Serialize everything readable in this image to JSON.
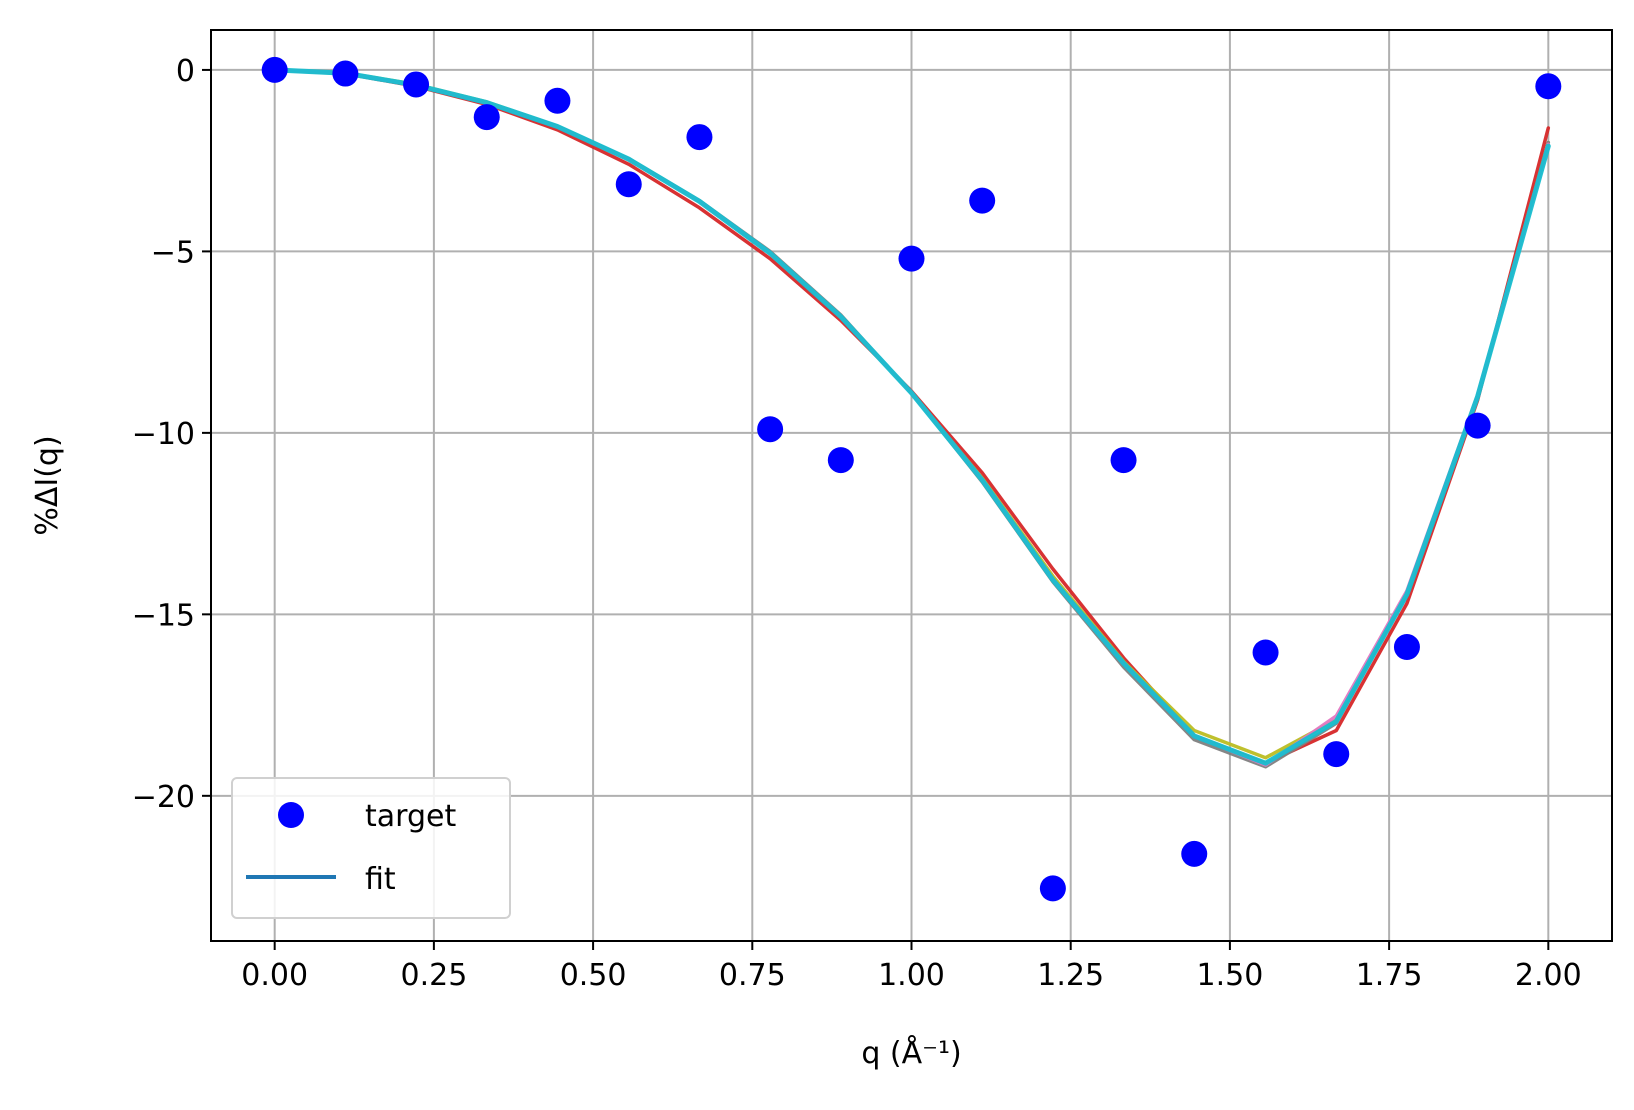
{
  "chart_data": {
    "type": "scatter",
    "title": "",
    "xlabel": "q (Å⁻¹)",
    "ylabel": "%ΔI(q)",
    "xlim": [
      -0.1,
      2.1
    ],
    "ylim": [
      -24,
      1.1
    ],
    "grid": true,
    "legend_position": "lower-left",
    "x_ticks": [
      0.0,
      0.25,
      0.5,
      0.75,
      1.0,
      1.25,
      1.5,
      1.75,
      2.0
    ],
    "x_tick_labels": [
      "0.00",
      "0.25",
      "0.50",
      "0.75",
      "1.00",
      "1.25",
      "1.50",
      "1.75",
      "2.00"
    ],
    "y_ticks": [
      0,
      -5,
      -10,
      -15,
      -20
    ],
    "y_tick_labels": [
      "0",
      "−5",
      "−10",
      "−15",
      "−20"
    ],
    "legend": [
      {
        "label": "target",
        "marker": "circle",
        "color": "#0000ff"
      },
      {
        "label": "fit",
        "marker": "line",
        "color": "#1f77b4"
      }
    ],
    "target": {
      "name": "target",
      "color": "#0000ff",
      "x": [
        0.0,
        0.111,
        0.222,
        0.333,
        0.444,
        0.556,
        0.667,
        0.778,
        0.889,
        1.0,
        1.111,
        1.222,
        1.333,
        1.444,
        1.556,
        1.667,
        1.778,
        1.889,
        2.0
      ],
      "y": [
        0.0,
        -0.1,
        -0.4,
        -1.3,
        -0.85,
        -3.15,
        -1.85,
        -9.9,
        -10.75,
        -5.2,
        -3.6,
        -22.55,
        -10.75,
        -21.6,
        -16.05,
        -18.85,
        -15.9,
        -9.8,
        -0.45
      ]
    },
    "fit_x": [
      0.0,
      0.111,
      0.222,
      0.333,
      0.444,
      0.556,
      0.667,
      0.778,
      0.889,
      1.0,
      1.111,
      1.222,
      1.333,
      1.444,
      1.556,
      1.667,
      1.778,
      1.889,
      2.0
    ],
    "fits": [
      {
        "color": "#d62728",
        "y": [
          0.0,
          -0.1,
          -0.45,
          -0.95,
          -1.65,
          -2.6,
          -3.8,
          -5.2,
          -6.9,
          -8.85,
          -11.1,
          -13.75,
          -16.2,
          -18.35,
          -19.1,
          -18.2,
          -14.7,
          -9.1,
          -1.6
        ]
      },
      {
        "color": "#bcbd22",
        "y": [
          0.0,
          -0.08,
          -0.4,
          -0.88,
          -1.55,
          -2.45,
          -3.6,
          -5.05,
          -6.8,
          -8.9,
          -11.25,
          -13.95,
          -16.3,
          -18.2,
          -18.95,
          -17.9,
          -14.4,
          -9.0,
          -2.0
        ]
      },
      {
        "color": "#7f7f7f",
        "y": [
          0.0,
          -0.09,
          -0.42,
          -0.9,
          -1.55,
          -2.45,
          -3.6,
          -5.0,
          -6.75,
          -8.9,
          -11.35,
          -14.1,
          -16.45,
          -18.45,
          -19.2,
          -18.0,
          -14.45,
          -9.0,
          -2.0
        ]
      },
      {
        "color": "#e377c2",
        "y": [
          0.0,
          -0.09,
          -0.42,
          -0.9,
          -1.57,
          -2.47,
          -3.62,
          -5.05,
          -6.8,
          -8.9,
          -11.3,
          -14.05,
          -16.35,
          -18.35,
          -19.15,
          -17.8,
          -14.35,
          -8.95,
          -2.05
        ]
      },
      {
        "color": "#17becf",
        "y": [
          0.0,
          -0.09,
          -0.42,
          -0.9,
          -1.56,
          -2.46,
          -3.62,
          -5.05,
          -6.8,
          -8.9,
          -11.3,
          -14.05,
          -16.35,
          -18.35,
          -19.1,
          -17.95,
          -14.45,
          -9.0,
          -2.1
        ]
      }
    ]
  }
}
